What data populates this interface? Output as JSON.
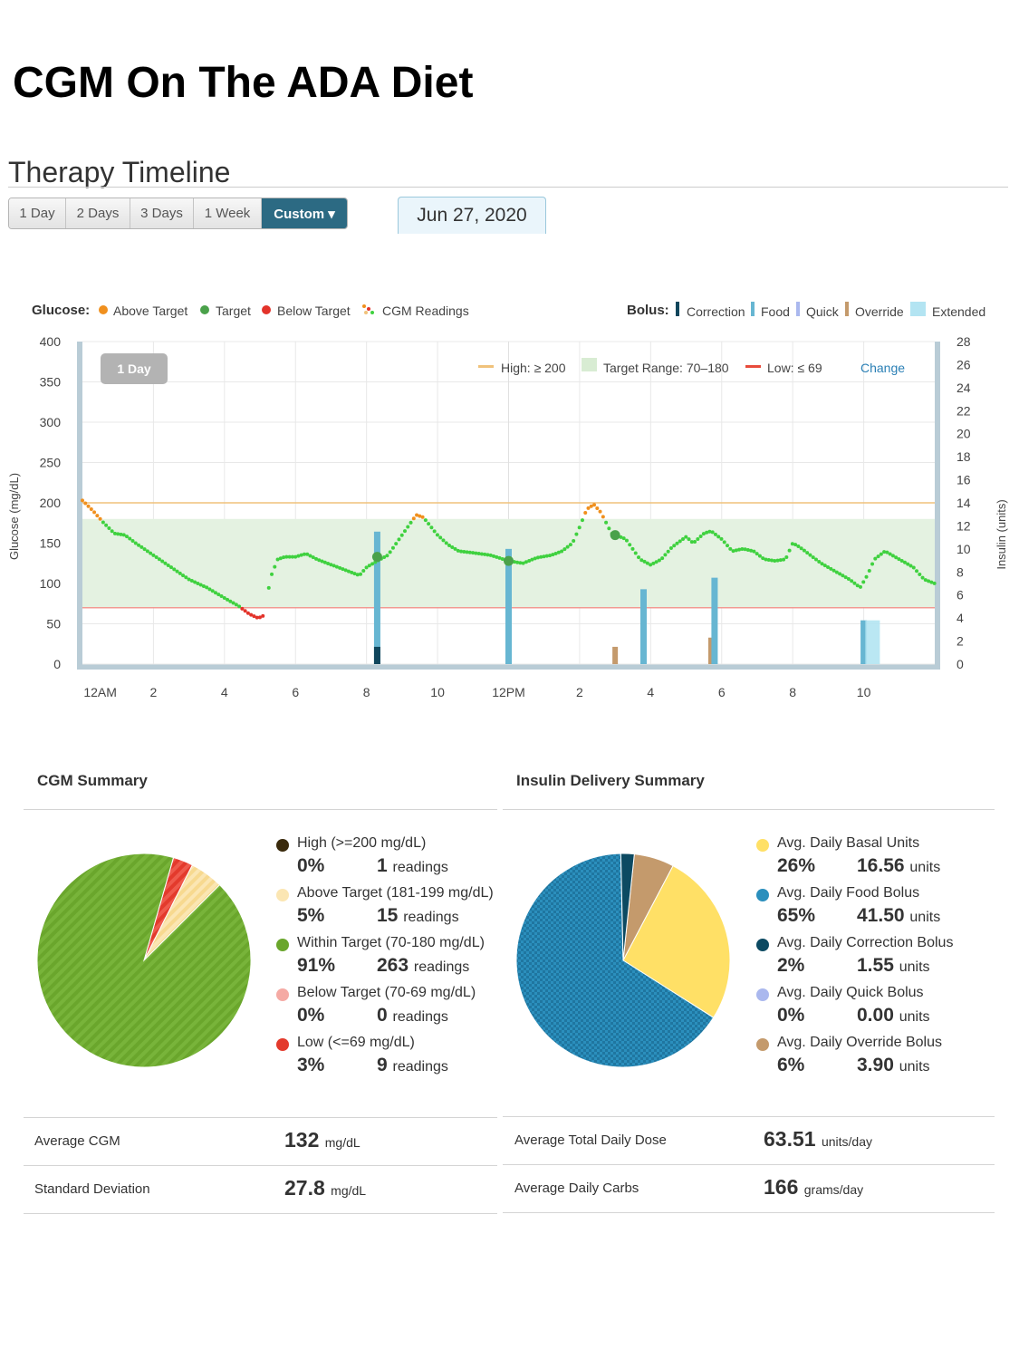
{
  "page_title": "CGM On The ADA Diet",
  "section_title": "Therapy Timeline",
  "range_tabs": [
    {
      "label": "1 Day"
    },
    {
      "label": "2 Days"
    },
    {
      "label": "3 Days"
    },
    {
      "label": "1 Week"
    },
    {
      "label": "Custom ▾"
    }
  ],
  "date_label": "Jun 27, 2020",
  "colors": {
    "above": "#f0901e",
    "target": "#4aa14a",
    "below": "#e3332a",
    "cgm": "#3fd13f",
    "correction": "#10465c",
    "food": "#67b6d2",
    "override": "#c49a6c",
    "extended": "#b3e4f2",
    "high_line": "#f0c27b",
    "low_line": "#e84b3c",
    "target_band": "#e4f2e1",
    "pie_green": "#6aa62c",
    "pie_blue": "#2b8fbd",
    "basal_yellow": "#ffe066",
    "correction_navy": "#0c4a62",
    "quick": "#aab8ee",
    "override_tan": "#c49a6c",
    "low_red": "#e33a2c",
    "above_light": "#fbe6b3",
    "high_dark": "#3a2a0c",
    "below_pink": "#f5aaa4"
  },
  "timeline": {
    "glucose_legend_title": "Glucose:",
    "glucose_legend": [
      "Above Target",
      "Target",
      "Below Target",
      "CGM Readings"
    ],
    "bolus_legend_title": "Bolus:",
    "bolus_legend": [
      "Correction",
      "Food",
      "Quick",
      "Override",
      "Extended"
    ],
    "period_badge": "1 Day",
    "high_label": "High: ≥ 200",
    "target_label": "Target Range: 70–180",
    "low_label": "Low: ≤ 69",
    "change_link": "Change"
  },
  "chart_data": {
    "type": "line",
    "title": "Therapy Timeline",
    "ylabel": "Glucose (mg/dL)",
    "y2label": "Insulin (units)",
    "ylim": [
      0,
      400
    ],
    "y2lim": [
      0,
      28
    ],
    "xlim": [
      0,
      24
    ],
    "y_ticks": [
      0,
      50,
      100,
      150,
      200,
      250,
      300,
      350,
      400
    ],
    "y2_ticks": [
      0,
      2,
      4,
      6,
      8,
      10,
      12,
      14,
      16,
      18,
      20,
      22,
      24,
      26,
      28
    ],
    "x_ticks": [
      {
        "h": 0.5,
        "label": "12AM"
      },
      {
        "h": 2,
        "label": "2"
      },
      {
        "h": 4,
        "label": "4"
      },
      {
        "h": 6,
        "label": "6"
      },
      {
        "h": 8,
        "label": "8"
      },
      {
        "h": 10,
        "label": "10"
      },
      {
        "h": 12,
        "label": "12PM"
      },
      {
        "h": 14,
        "label": "2"
      },
      {
        "h": 16,
        "label": "4"
      },
      {
        "h": 18,
        "label": "6"
      },
      {
        "h": 20,
        "label": "8"
      },
      {
        "h": 22,
        "label": "10"
      }
    ],
    "high_threshold": 200,
    "target_range": [
      70,
      180
    ],
    "low_threshold": 69,
    "glucose_curve": [
      [
        0.0,
        203
      ],
      [
        0.3,
        190
      ],
      [
        0.6,
        175
      ],
      [
        0.9,
        162
      ],
      [
        1.2,
        160
      ],
      [
        1.5,
        150
      ],
      [
        2.0,
        135
      ],
      [
        2.5,
        120
      ],
      [
        3.0,
        105
      ],
      [
        3.5,
        95
      ],
      [
        4.0,
        82
      ],
      [
        4.4,
        72
      ],
      [
        4.7,
        62
      ],
      [
        4.95,
        57
      ],
      [
        5.1,
        60
      ],
      [
        5.2,
        82
      ],
      [
        5.3,
        108
      ],
      [
        5.5,
        130
      ],
      [
        5.7,
        133
      ],
      [
        6.0,
        133
      ],
      [
        6.3,
        137
      ],
      [
        6.6,
        130
      ],
      [
        6.9,
        125
      ],
      [
        7.2,
        120
      ],
      [
        7.5,
        115
      ],
      [
        7.8,
        110
      ],
      [
        8.0,
        120
      ],
      [
        8.3,
        128
      ],
      [
        8.6,
        135
      ],
      [
        9.0,
        160
      ],
      [
        9.4,
        185
      ],
      [
        9.6,
        182
      ],
      [
        10.0,
        160
      ],
      [
        10.3,
        148
      ],
      [
        10.6,
        140
      ],
      [
        11.0,
        138
      ],
      [
        11.5,
        135
      ],
      [
        12.0,
        128
      ],
      [
        12.4,
        125
      ],
      [
        12.8,
        132
      ],
      [
        13.2,
        135
      ],
      [
        13.5,
        140
      ],
      [
        13.8,
        150
      ],
      [
        14.0,
        170
      ],
      [
        14.2,
        192
      ],
      [
        14.4,
        198
      ],
      [
        14.6,
        188
      ],
      [
        14.9,
        162
      ],
      [
        15.3,
        155
      ],
      [
        15.7,
        130
      ],
      [
        16.0,
        123
      ],
      [
        16.3,
        130
      ],
      [
        16.6,
        145
      ],
      [
        17.0,
        158
      ],
      [
        17.2,
        150
      ],
      [
        17.5,
        162
      ],
      [
        17.7,
        165
      ],
      [
        18.0,
        155
      ],
      [
        18.3,
        140
      ],
      [
        18.6,
        143
      ],
      [
        18.9,
        140
      ],
      [
        19.2,
        130
      ],
      [
        19.5,
        128
      ],
      [
        19.8,
        130
      ],
      [
        20.0,
        150
      ],
      [
        20.2,
        145
      ],
      [
        20.5,
        135
      ],
      [
        20.8,
        125
      ],
      [
        21.2,
        115
      ],
      [
        21.6,
        105
      ],
      [
        21.9,
        95
      ],
      [
        22.1,
        110
      ],
      [
        22.3,
        130
      ],
      [
        22.6,
        140
      ],
      [
        23.0,
        130
      ],
      [
        23.4,
        120
      ],
      [
        23.7,
        105
      ],
      [
        24.0,
        100
      ]
    ],
    "target_markers": [
      [
        8.3,
        133
      ],
      [
        12.0,
        128
      ],
      [
        15.0,
        160
      ]
    ],
    "bolus_bars": [
      {
        "h": 8.3,
        "type": "food",
        "units": 11.5
      },
      {
        "h": 8.3,
        "type": "correction",
        "units": 1.5
      },
      {
        "h": 12.0,
        "type": "food",
        "units": 10.0
      },
      {
        "h": 15.0,
        "type": "override",
        "units": 1.5
      },
      {
        "h": 15.8,
        "type": "food",
        "units": 6.5
      },
      {
        "h": 17.7,
        "type": "override",
        "units": 2.3
      },
      {
        "h": 17.8,
        "type": "food",
        "units": 7.5
      },
      {
        "h": 22.0,
        "type": "food",
        "units": 3.8
      },
      {
        "h": 22.25,
        "type": "extended",
        "units": 3.8
      }
    ],
    "cgm_summary_pie": [
      {
        "label": "High (>=200 mg/dL)",
        "value": 0
      },
      {
        "label": "Above Target (181-199 mg/dL)",
        "value": 5
      },
      {
        "label": "Within Target (70-180 mg/dL)",
        "value": 91
      },
      {
        "label": "Below Target (70-69 mg/dL)",
        "value": 0
      },
      {
        "label": "Low (<=69 mg/dL)",
        "value": 3
      }
    ],
    "insulin_pie": [
      {
        "label": "Avg. Daily Basal Units",
        "value": 26
      },
      {
        "label": "Avg. Daily Food Bolus",
        "value": 65
      },
      {
        "label": "Avg. Daily Correction Bolus",
        "value": 2
      },
      {
        "label": "Avg. Daily Quick Bolus",
        "value": 0
      },
      {
        "label": "Avg. Daily Override Bolus",
        "value": 6
      }
    ]
  },
  "cgm_summary": {
    "title": "CGM Summary",
    "items": [
      {
        "label": "High (>=200 mg/dL)",
        "pct": "0%",
        "num": "1",
        "unit": "readings"
      },
      {
        "label": "Above Target (181-199 mg/dL)",
        "pct": "5%",
        "num": "15",
        "unit": "readings"
      },
      {
        "label": "Within Target (70-180 mg/dL)",
        "pct": "91%",
        "num": "263",
        "unit": "readings"
      },
      {
        "label": "Below Target (70-69 mg/dL)",
        "pct": "0%",
        "num": "0",
        "unit": "readings"
      },
      {
        "label": "Low (<=69 mg/dL)",
        "pct": "3%",
        "num": "9",
        "unit": "readings"
      }
    ],
    "stats": [
      {
        "label": "Average CGM",
        "value": "132",
        "unit": "mg/dL"
      },
      {
        "label": "Standard Deviation",
        "value": "27.8",
        "unit": "mg/dL"
      }
    ]
  },
  "insulin_summary": {
    "title": "Insulin Delivery Summary",
    "items": [
      {
        "label": "Avg. Daily Basal Units",
        "pct": "26%",
        "num": "16.56",
        "unit": "units"
      },
      {
        "label": "Avg. Daily Food Bolus",
        "pct": "65%",
        "num": "41.50",
        "unit": "units"
      },
      {
        "label": "Avg. Daily Correction Bolus",
        "pct": "2%",
        "num": "1.55",
        "unit": "units"
      },
      {
        "label": "Avg. Daily Quick Bolus",
        "pct": "0%",
        "num": "0.00",
        "unit": "units"
      },
      {
        "label": "Avg. Daily Override Bolus",
        "pct": "6%",
        "num": "3.90",
        "unit": "units"
      }
    ],
    "stats": [
      {
        "label": "Average Total Daily Dose",
        "value": "63.51",
        "unit": "units/day"
      },
      {
        "label": "Average Daily Carbs",
        "value": "166",
        "unit": "grams/day"
      }
    ]
  }
}
